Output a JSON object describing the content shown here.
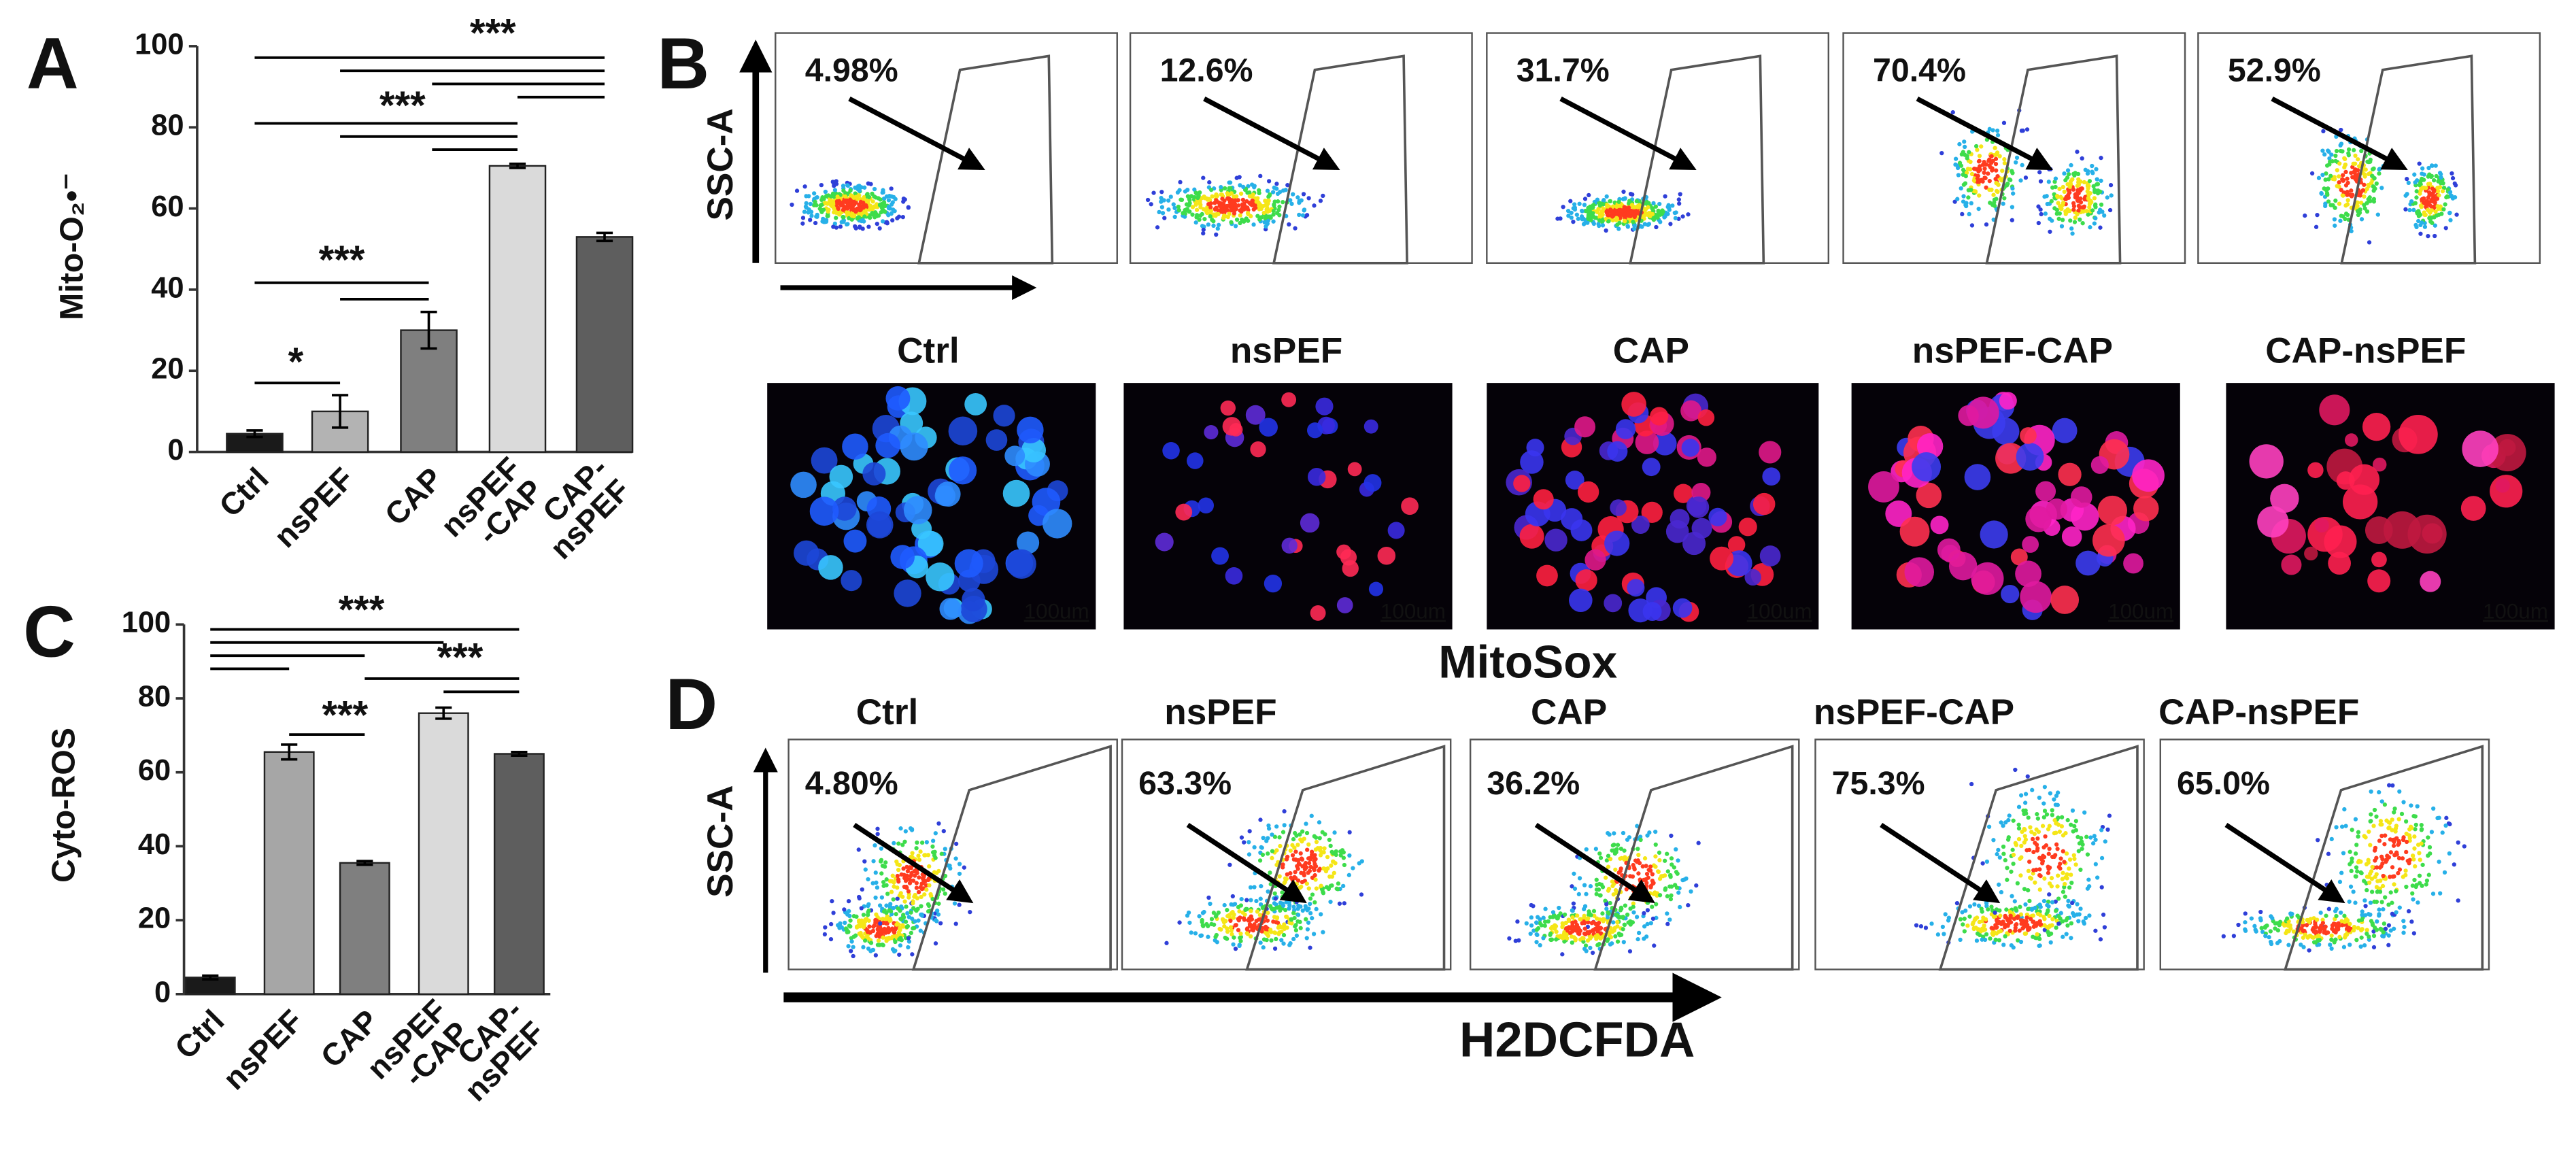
{
  "chart_data": [
    {
      "type": "bar",
      "panel_label": "A",
      "ylabel": "Mito-O₂•⁻",
      "categories": [
        "Ctrl",
        "nsPEF",
        "CAP",
        "nsPEF -CAP",
        "CAP- nsPEF"
      ],
      "values": [
        4.5,
        10,
        30,
        70.5,
        53
      ],
      "errors": [
        0.8,
        4,
        4.5,
        0.5,
        1
      ],
      "colors": [
        "#1a1a1a",
        "#b3b3b3",
        "#7f7f7f",
        "#dadada",
        "#5e5e5e"
      ],
      "ylim": [
        0,
        100
      ],
      "yticks": [
        0,
        20,
        40,
        60,
        80,
        100
      ],
      "annotations": [
        "***",
        "***",
        "***",
        "*"
      ]
    },
    {
      "type": "bar",
      "panel_label": "C",
      "ylabel": "Cyto-ROS",
      "categories": [
        "Ctrl",
        "nsPEF",
        "CAP",
        "nsPEF -CAP",
        "CAP- nsPEF"
      ],
      "values": [
        4.5,
        65.5,
        35.5,
        76,
        65
      ],
      "errors": [
        0.5,
        2,
        0.5,
        1.5,
        0.5
      ],
      "colors": [
        "#1a1a1a",
        "#a6a6a6",
        "#7f7f7f",
        "#dadada",
        "#5e5e5e"
      ],
      "ylim": [
        0,
        100
      ],
      "yticks": [
        0,
        20,
        40,
        60,
        80,
        100
      ],
      "annotations": [
        "***",
        "***",
        "***"
      ]
    }
  ],
  "panel_b": {
    "label": "B",
    "y_axis": "SSC-A",
    "gates": [
      "4.98%",
      "12.6%",
      "31.7%",
      "70.4%",
      "52.9%"
    ],
    "image_titles": [
      "Ctrl",
      "nsPEF",
      "CAP",
      "nsPEF-CAP",
      "CAP-nsPEF"
    ],
    "scale_bars": [
      "100um",
      "100um",
      "100um",
      "100um",
      "100um"
    ],
    "stain": "MitoSox"
  },
  "panel_d": {
    "label": "D",
    "y_axis": "SSC-A",
    "titles": [
      "Ctrl",
      "nsPEF",
      "CAP",
      "nsPEF-CAP",
      "CAP-nsPEF"
    ],
    "gates": [
      "4.80%",
      "63.3%",
      "36.2%",
      "75.3%",
      "65.0%"
    ],
    "x_axis": "H2DCFDA"
  }
}
